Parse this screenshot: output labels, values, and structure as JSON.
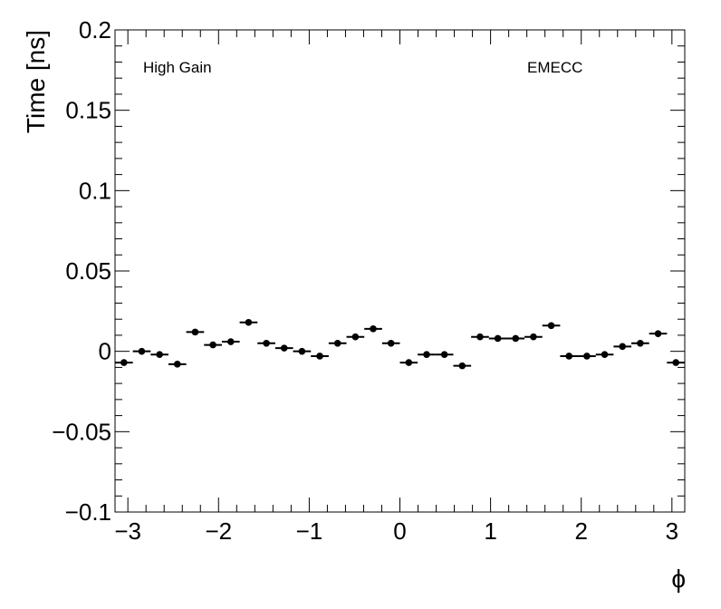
{
  "chart_data": {
    "type": "scatter",
    "xlabel": "ϕ",
    "ylabel": "Time [ns]",
    "xlim": [
      -3.1416,
      3.1416
    ],
    "ylim": [
      -0.1,
      0.2
    ],
    "xticks": [
      -3,
      -2,
      -1,
      0,
      1,
      2,
      3
    ],
    "xtick_labels": [
      "−3",
      "−2",
      "−1",
      "0",
      "1",
      "2",
      "3"
    ],
    "yticks": [
      -0.1,
      -0.05,
      0,
      0.05,
      0.1,
      0.15,
      0.2
    ],
    "ytick_labels": [
      "−0.1",
      "−0.05",
      "0",
      "0.05",
      "0.1",
      "0.15",
      "0.2"
    ],
    "annotations": [
      "High Gain",
      "EMECC"
    ],
    "marker_color": "#000000",
    "grid": false,
    "series": [
      {
        "x_err": 0.0982,
        "x": [
          -3.0434,
          -2.8471,
          -2.6507,
          -2.4544,
          -2.258,
          -2.0617,
          -1.8653,
          -1.669,
          -1.4726,
          -1.2763,
          -1.0799,
          -0.8836,
          -0.6872,
          -0.4909,
          -0.2945,
          -0.0982,
          0.0982,
          0.2945,
          0.4909,
          0.6872,
          0.8836,
          1.0799,
          1.2763,
          1.4726,
          1.669,
          1.8653,
          2.0617,
          2.258,
          2.4544,
          2.6507,
          2.8471,
          3.0434
        ],
        "y": [
          -0.007,
          0.0,
          -0.002,
          -0.008,
          0.012,
          0.004,
          0.006,
          0.018,
          0.005,
          0.002,
          0.0,
          -0.003,
          0.005,
          0.009,
          0.014,
          0.005,
          -0.007,
          -0.002,
          -0.002,
          -0.009,
          0.009,
          0.008,
          0.008,
          0.009,
          0.016,
          -0.003,
          -0.003,
          -0.002,
          0.003,
          0.005,
          0.011,
          -0.007
        ]
      }
    ]
  }
}
